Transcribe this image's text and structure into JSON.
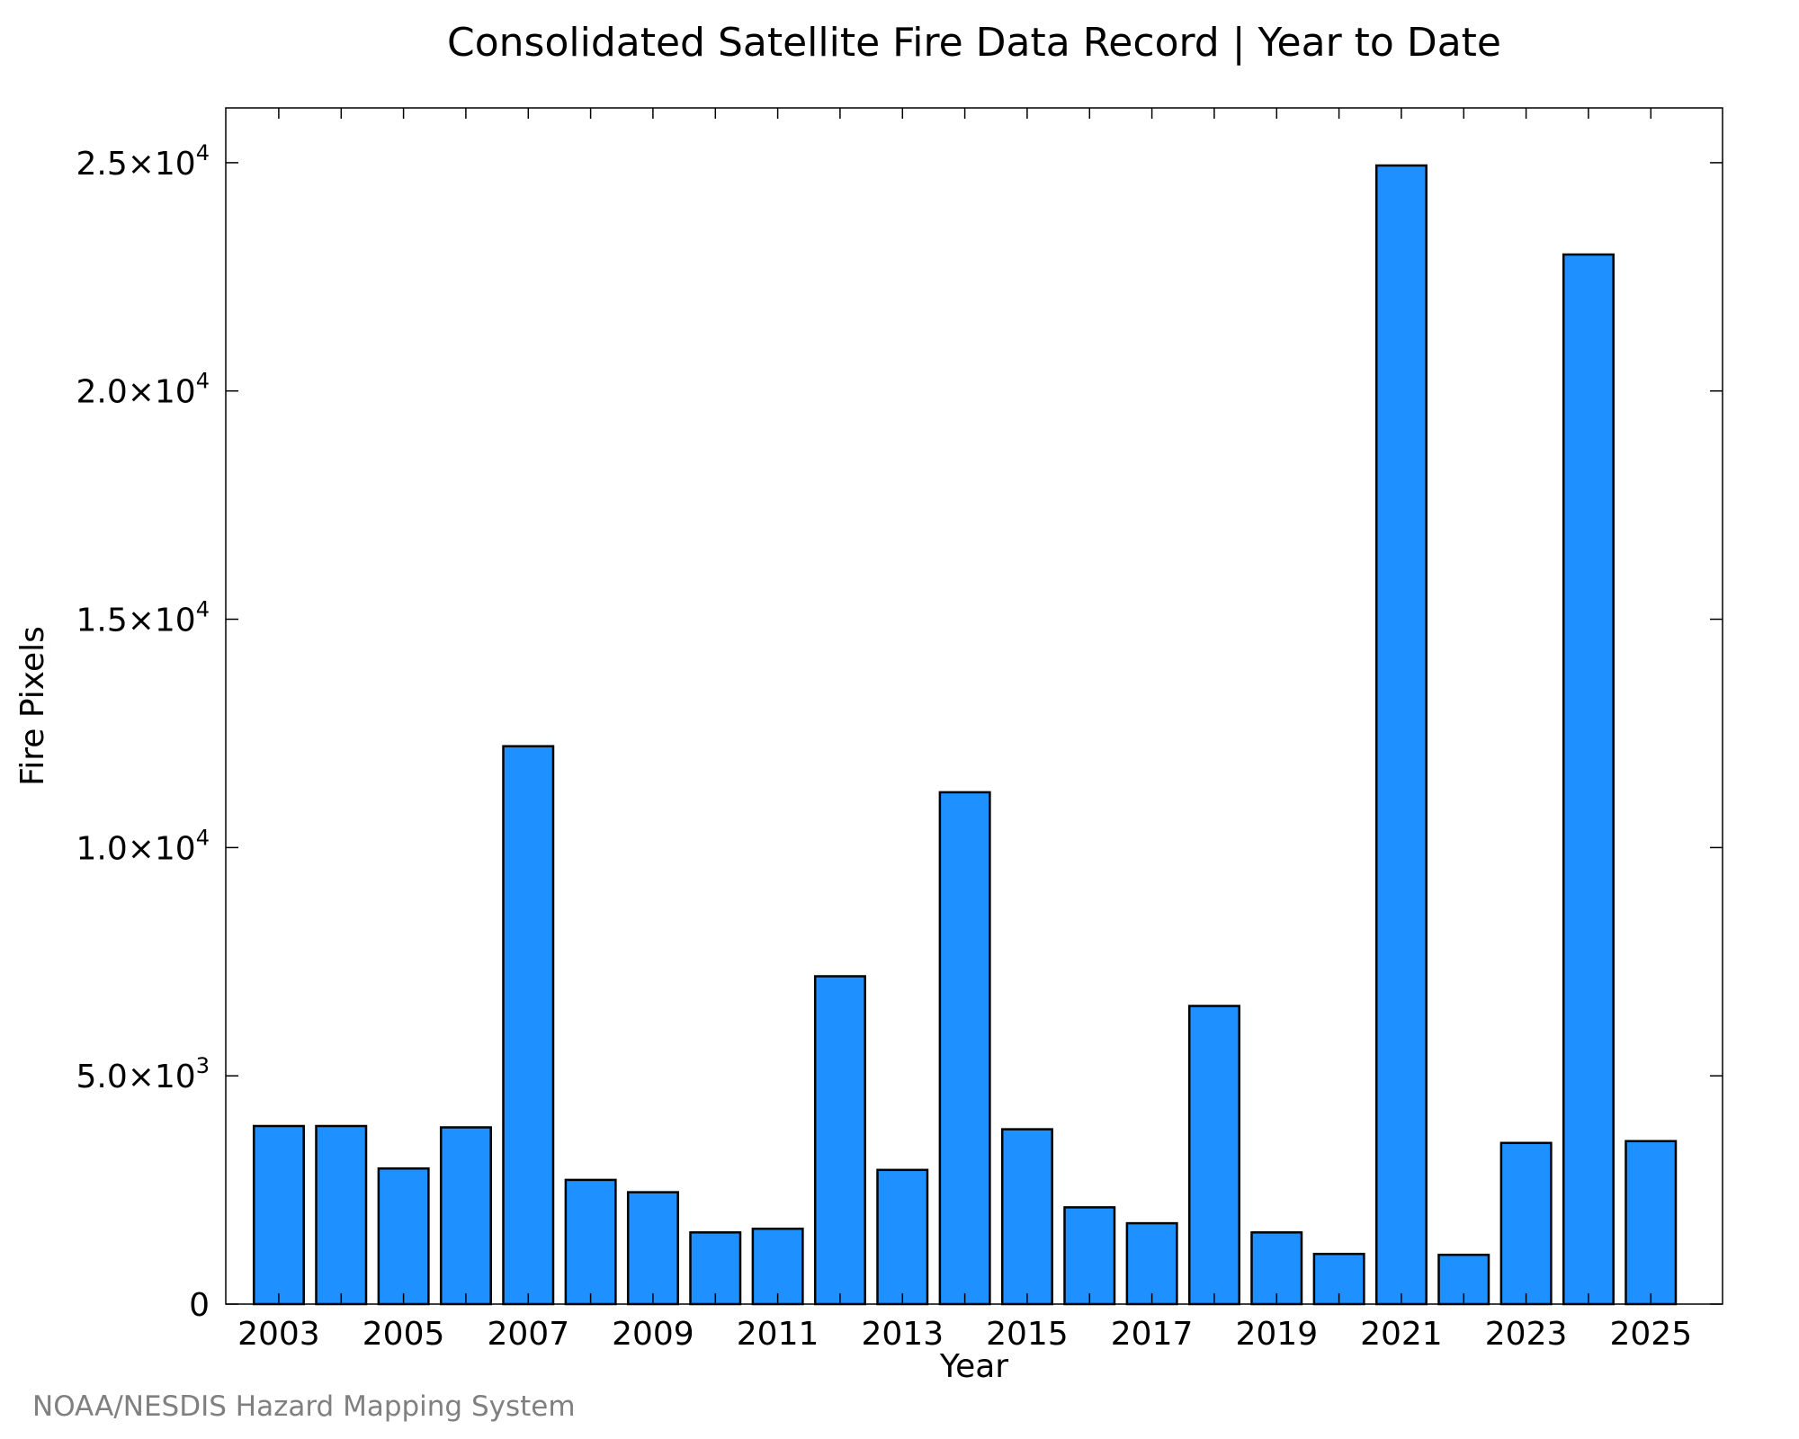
{
  "chart_data": {
    "type": "bar",
    "title": "Consolidated Satellite Fire Data Record | Year to Date",
    "xlabel": "Year",
    "ylabel": "Fire Pixels",
    "categories": [
      "2003",
      "2004",
      "2005",
      "2006",
      "2007",
      "2008",
      "2009",
      "2010",
      "2011",
      "2012",
      "2013",
      "2014",
      "2015",
      "2016",
      "2017",
      "2018",
      "2019",
      "2020",
      "2021",
      "2022",
      "2023",
      "2024",
      "2025"
    ],
    "values": [
      3900,
      3900,
      2970,
      3870,
      12220,
      2720,
      2450,
      1570,
      1650,
      7180,
      2940,
      11210,
      3830,
      2120,
      1770,
      6530,
      1570,
      1100,
      24940,
      1080,
      3530,
      22990,
      3570
    ],
    "x_tick_labels": [
      {
        "year": "2003",
        "label": "2003"
      },
      {
        "year": "2005",
        "label": "2005"
      },
      {
        "year": "2007",
        "label": "2007"
      },
      {
        "year": "2009",
        "label": "2009"
      },
      {
        "year": "2011",
        "label": "2011"
      },
      {
        "year": "2013",
        "label": "2013"
      },
      {
        "year": "2015",
        "label": "2015"
      },
      {
        "year": "2017",
        "label": "2017"
      },
      {
        "year": "2019",
        "label": "2019"
      },
      {
        "year": "2021",
        "label": "2021"
      },
      {
        "year": "2023",
        "label": "2023"
      },
      {
        "year": "2025",
        "label": "2025"
      }
    ],
    "y_ticks": [
      {
        "value": 0,
        "mantissa": "0",
        "exponent": ""
      },
      {
        "value": 5000,
        "mantissa": "5.0×10",
        "exponent": "3"
      },
      {
        "value": 10000,
        "mantissa": "1.0×10",
        "exponent": "4"
      },
      {
        "value": 15000,
        "mantissa": "1.5×10",
        "exponent": "4"
      },
      {
        "value": 20000,
        "mantissa": "2.0×10",
        "exponent": "4"
      },
      {
        "value": 25000,
        "mantissa": "2.5×10",
        "exponent": "4"
      }
    ],
    "ylim": [
      0,
      26200
    ],
    "xlim": [
      2002.15,
      2026.15
    ],
    "bar_width": 0.8,
    "grid": false,
    "legend": "none",
    "bar_color": "#1e90ff",
    "bar_edge_color": "#000000"
  },
  "credit": {
    "text": "NOAA/NESDIS Hazard Mapping System",
    "color": "#808080"
  }
}
